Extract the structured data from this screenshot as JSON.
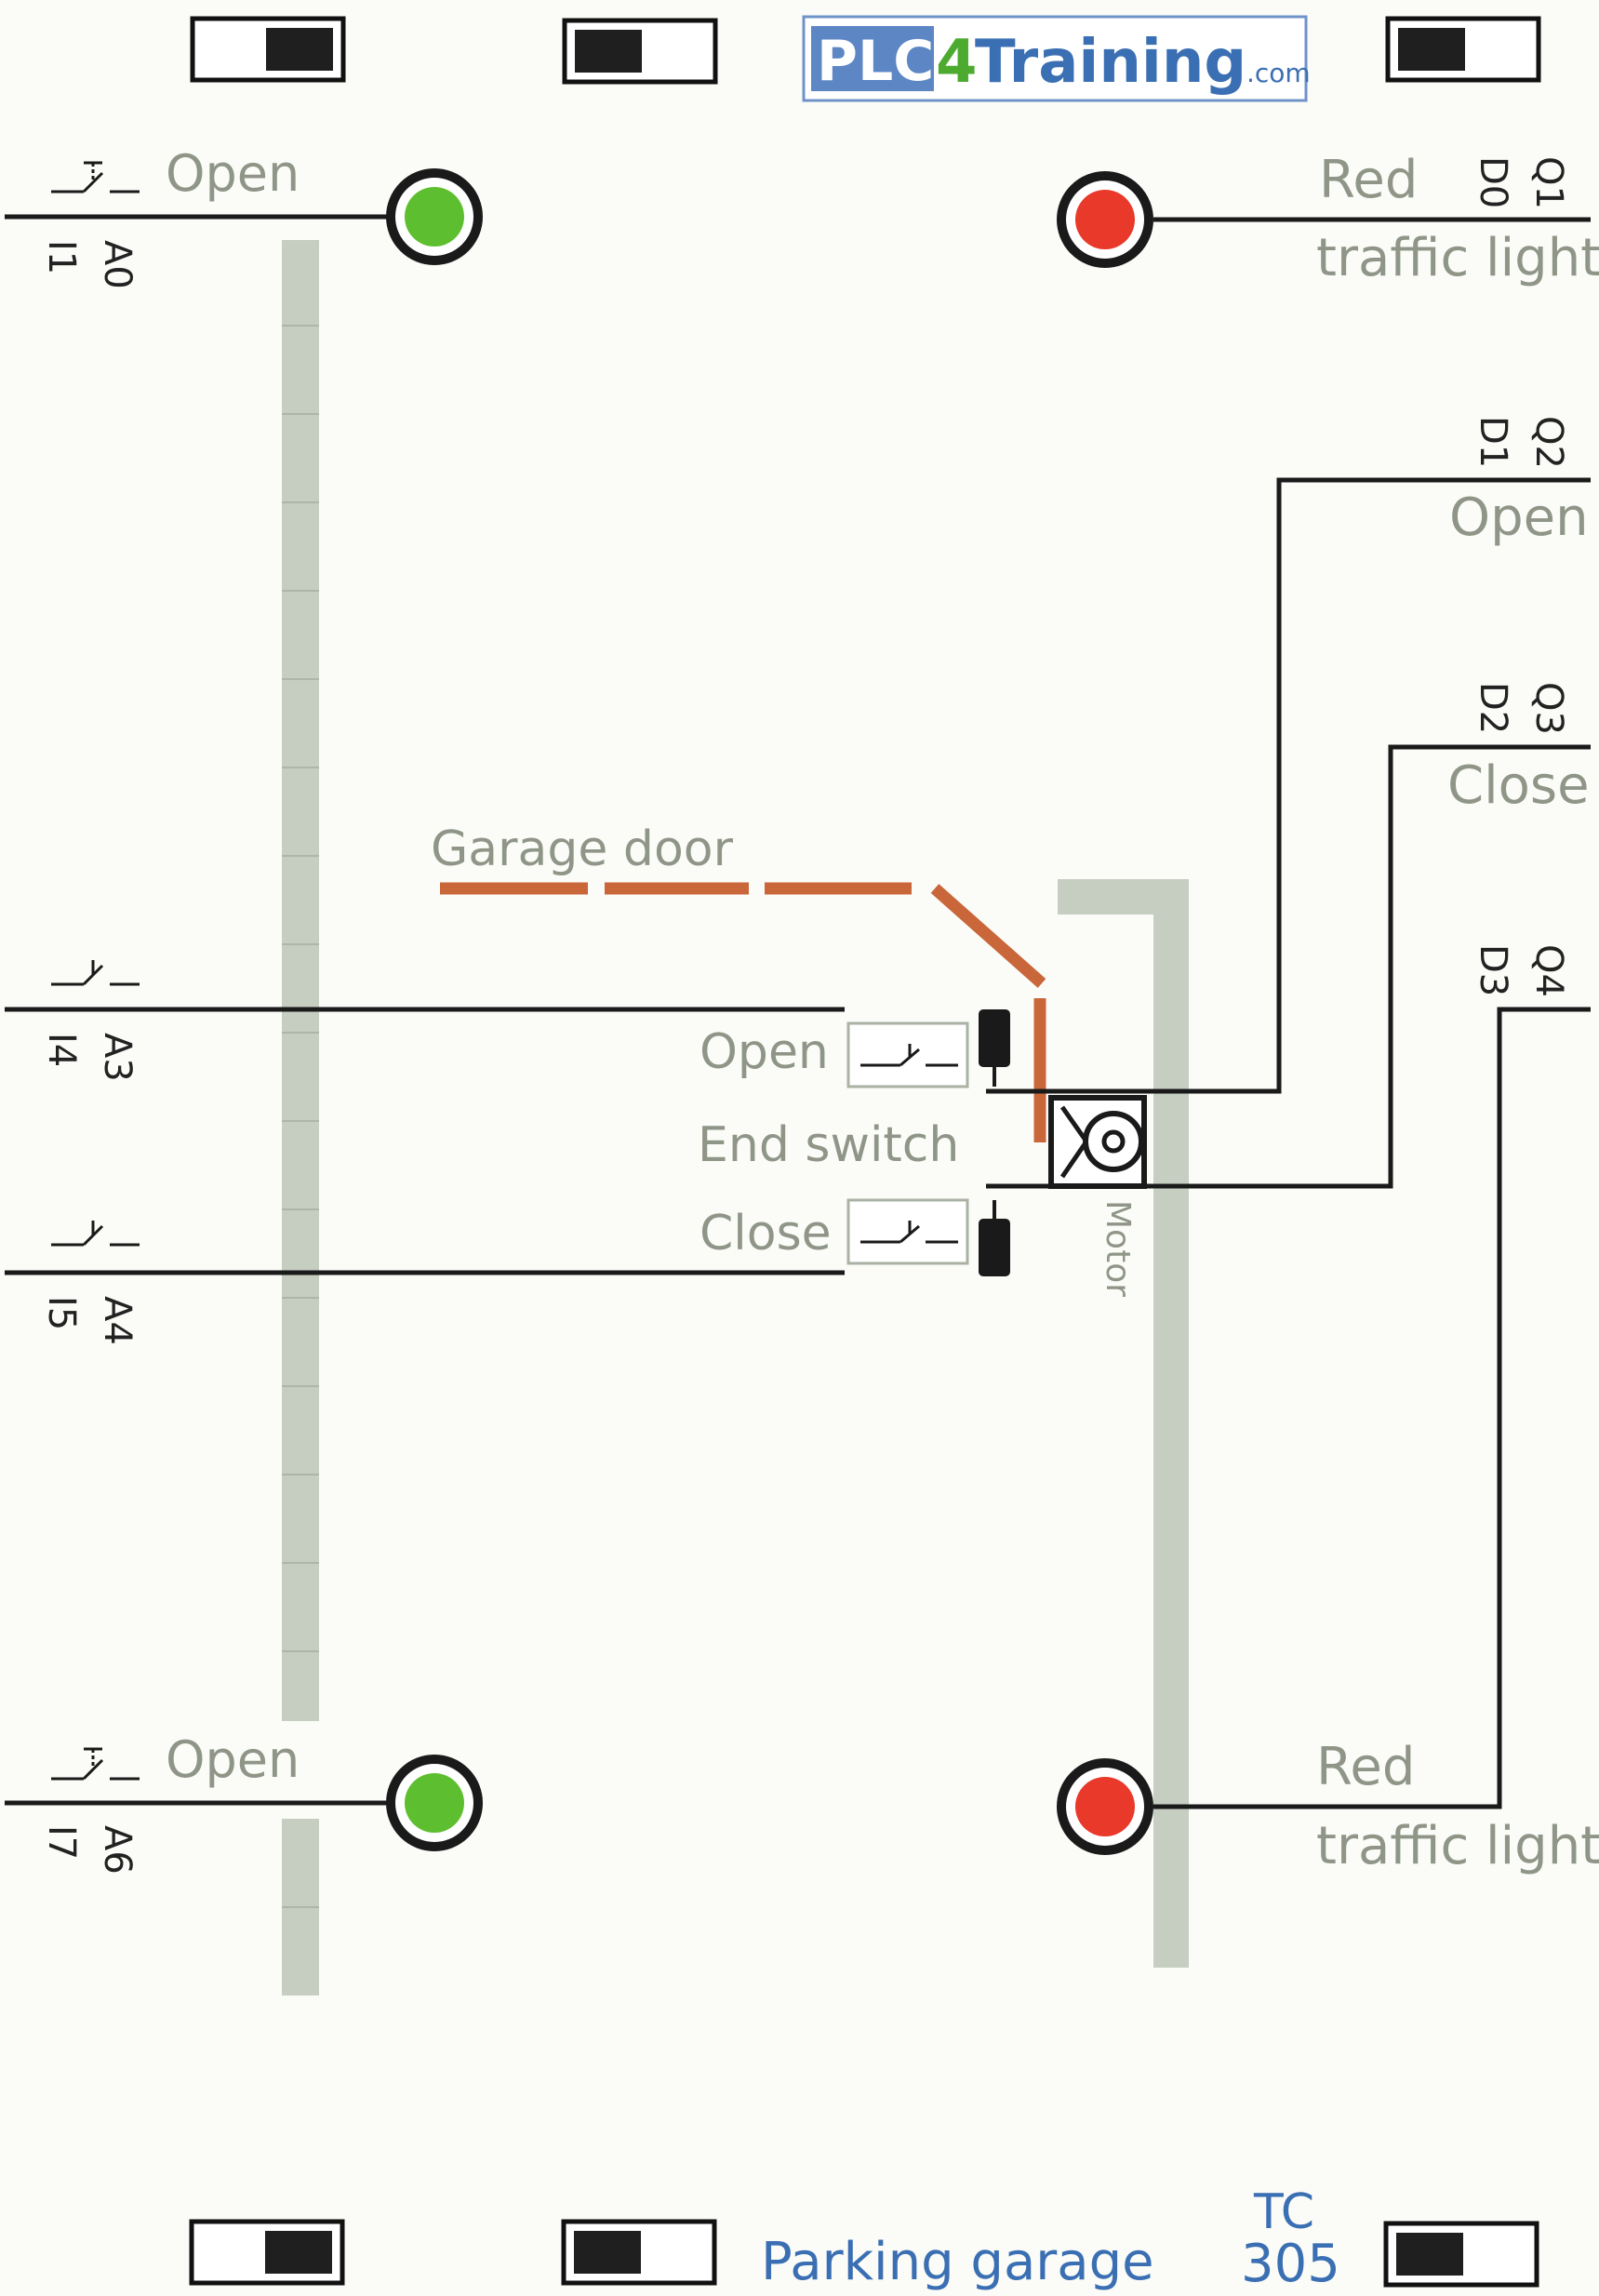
{
  "logo": {
    "plc": "PLC",
    "four": "4",
    "training": "Training",
    "dotcom": ".com"
  },
  "footer": {
    "title": "Parking garage",
    "code_line1": "TC",
    "code_line2": "305"
  },
  "inputs": {
    "top_open": {
      "label": "Open",
      "pin1": "A0",
      "pin2": "I1"
    },
    "door_open": {
      "pin1": "A3",
      "pin2": "I4"
    },
    "door_close": {
      "pin1": "A4",
      "pin2": "I5"
    },
    "bottom_open": {
      "label": "Open",
      "pin1": "A6",
      "pin2": "I7"
    }
  },
  "outputs": {
    "top_red": {
      "line1": "Red",
      "line2": "traffic light",
      "pin1": "D0",
      "pin2": "Q1"
    },
    "motor_open": {
      "label": "Open",
      "pin1": "D1",
      "pin2": "Q2"
    },
    "motor_close": {
      "label": "Close",
      "pin1": "D2",
      "pin2": "Q3"
    },
    "bottom_red": {
      "line1": "Red",
      "line2": "traffic light",
      "pin1": "D3",
      "pin2": "Q4"
    }
  },
  "door": {
    "label": "Garage door"
  },
  "end_switch": {
    "open_label": "Open",
    "title": "End switch",
    "close_label": "Close"
  },
  "motor": {
    "label": "Motor"
  },
  "colors": {
    "green_light": "#5dbf2f",
    "red_light": "#e8392a",
    "door": "#c9663a",
    "barrier": "#c6cdc1",
    "wire": "#1a1a1a",
    "gray_text": "#8f9688",
    "blue_text": "#3b6fb3",
    "logo_green": "#4caa2f"
  }
}
